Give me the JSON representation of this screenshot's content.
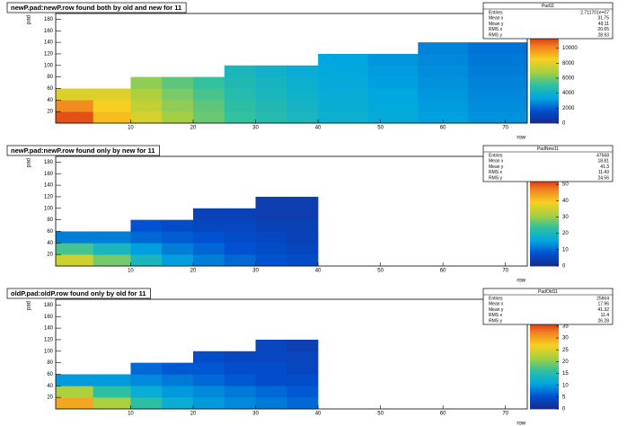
{
  "chart_data": [
    {
      "type": "heatmap",
      "title": "newP.pad:newP.row found both by old and new for 11",
      "x_label": "row",
      "y_label": "pad",
      "xedges": [
        -2,
        4,
        10,
        15,
        20,
        25,
        30,
        35,
        40,
        48,
        56,
        64,
        73.5
      ],
      "yedges": [
        0,
        20,
        40,
        60,
        80,
        100,
        120,
        140
      ],
      "z": [
        [
          11000,
          9000,
          7800,
          6800,
          6000,
          5200,
          4800,
          4400,
          3900,
          3600,
          3300,
          3000
        ],
        [
          10000,
          8500,
          7400,
          6500,
          5800,
          5000,
          4600,
          4200,
          3800,
          3500,
          3200,
          2900
        ],
        [
          8000,
          8000,
          7000,
          6200,
          5500,
          4800,
          4400,
          4000,
          3700,
          3400,
          3100,
          2800
        ],
        [
          null,
          null,
          6500,
          5800,
          5200,
          4600,
          4200,
          3900,
          3600,
          3300,
          3000,
          2700
        ],
        [
          null,
          null,
          null,
          null,
          null,
          4400,
          4000,
          3700,
          3500,
          3200,
          2900,
          2600
        ],
        [
          null,
          null,
          null,
          null,
          null,
          null,
          null,
          null,
          3400,
          3100,
          2800,
          2500
        ],
        [
          null,
          null,
          null,
          null,
          null,
          null,
          null,
          null,
          null,
          null,
          2700,
          2400
        ]
      ],
      "xlim": [
        -2,
        73.5
      ],
      "xticks": [
        10,
        20,
        30,
        40,
        50,
        60,
        70
      ],
      "ylim": [
        0,
        190
      ],
      "yticks": [
        20,
        40,
        60,
        80,
        100,
        120,
        140,
        160,
        180
      ],
      "zlim": [
        0,
        12000
      ],
      "zticks": [
        0,
        2000,
        4000,
        6000,
        8000,
        10000
      ],
      "palette": [
        "#1a2a8a",
        "#0050d0",
        "#00a8e0",
        "#30c0a0",
        "#a8d040",
        "#f8d020",
        "#f08020",
        "#d01010"
      ],
      "stats": {
        "name": "Pad11",
        "rows": [
          [
            "Entries",
            "2.711701e+07"
          ],
          [
            "Mean x",
            "31.75"
          ],
          [
            "Mean y",
            "49.11"
          ],
          [
            "RMS x",
            "20.65"
          ],
          [
            "RMS y",
            "28.93"
          ]
        ]
      }
    },
    {
      "type": "heatmap",
      "title": "newP.pad:newP.row found only by new for 11",
      "x_label": "row",
      "y_label": "pad",
      "xedges": [
        -2,
        4,
        10,
        15,
        20,
        25,
        30,
        35,
        40,
        48,
        56,
        64,
        73.5
      ],
      "yedges": [
        0,
        20,
        40,
        60,
        80,
        100,
        120
      ],
      "z": [
        [
          35,
          28,
          20,
          15,
          12,
          10,
          8,
          7,
          null,
          null,
          null,
          null
        ],
        [
          25,
          20,
          15,
          12,
          10,
          8,
          7,
          6,
          null,
          null,
          null,
          null
        ],
        [
          12,
          12,
          10,
          9,
          8,
          7,
          6,
          5,
          null,
          null,
          null,
          null
        ],
        [
          null,
          null,
          8,
          7,
          6,
          6,
          5,
          5,
          null,
          null,
          null,
          null
        ],
        [
          null,
          null,
          null,
          null,
          5,
          5,
          4,
          4,
          null,
          null,
          null,
          null
        ],
        [
          null,
          null,
          null,
          null,
          null,
          null,
          4,
          4,
          null,
          null,
          null,
          null
        ]
      ],
      "xlim": [
        -2,
        73.5
      ],
      "xticks": [
        10,
        20,
        30,
        40,
        50,
        60,
        70
      ],
      "ylim": [
        0,
        190
      ],
      "yticks": [
        20,
        40,
        60,
        80,
        100,
        120,
        140,
        160,
        180
      ],
      "zlim": [
        0,
        55
      ],
      "zticks": [
        0,
        10,
        20,
        30,
        40,
        50
      ],
      "palette": [
        "#1a2a8a",
        "#0050d0",
        "#00a8e0",
        "#30c0a0",
        "#a8d040",
        "#f8d020",
        "#f08020",
        "#d01010"
      ],
      "stats": {
        "name": "PadNew11",
        "rows": [
          [
            "Entries",
            "47568"
          ],
          [
            "Mean x",
            "18.81"
          ],
          [
            "Mean y",
            "41.3"
          ],
          [
            "RMS x",
            "11.43"
          ],
          [
            "RMS y",
            "24.56"
          ]
        ]
      }
    },
    {
      "type": "heatmap",
      "title": "oldP.pad:oldP.row found only by old for 11",
      "x_label": "row",
      "y_label": "pad",
      "xedges": [
        -2,
        4,
        10,
        15,
        20,
        25,
        30,
        35,
        40,
        48,
        56,
        64,
        73.5
      ],
      "yedges": [
        0,
        20,
        40,
        60,
        80,
        100,
        120
      ],
      "z": [
        [
          30,
          22,
          16,
          12,
          10,
          9,
          8,
          7,
          null,
          null,
          null,
          null
        ],
        [
          22,
          16,
          12,
          10,
          9,
          8,
          7,
          6,
          null,
          null,
          null,
          null
        ],
        [
          10,
          10,
          9,
          8,
          7,
          6,
          5,
          5,
          null,
          null,
          null,
          null
        ],
        [
          null,
          null,
          7,
          6,
          6,
          5,
          5,
          4,
          null,
          null,
          null,
          null
        ],
        [
          null,
          null,
          null,
          null,
          5,
          4,
          4,
          4,
          null,
          null,
          null,
          null
        ],
        [
          null,
          null,
          null,
          null,
          null,
          null,
          4,
          3,
          null,
          null,
          null,
          null
        ]
      ],
      "xlim": [
        -2,
        73.5
      ],
      "xticks": [
        10,
        20,
        30,
        40,
        50,
        60,
        70
      ],
      "ylim": [
        0,
        190
      ],
      "yticks": [
        20,
        40,
        60,
        80,
        100,
        120,
        140,
        160,
        180
      ],
      "zlim": [
        0,
        38
      ],
      "zticks": [
        0,
        5,
        10,
        15,
        20,
        25,
        30,
        35
      ],
      "palette": [
        "#1a2a8a",
        "#0050d0",
        "#00a8e0",
        "#30c0a0",
        "#a8d040",
        "#f8d020",
        "#f08020",
        "#d01010"
      ],
      "stats": {
        "name": "PadOld11",
        "rows": [
          [
            "Entries",
            "25664"
          ],
          [
            "Mean x",
            "17.96"
          ],
          [
            "Mean y",
            "41.32"
          ],
          [
            "RMS x",
            "11.4"
          ],
          [
            "RMS y",
            "26.28"
          ]
        ]
      }
    }
  ]
}
